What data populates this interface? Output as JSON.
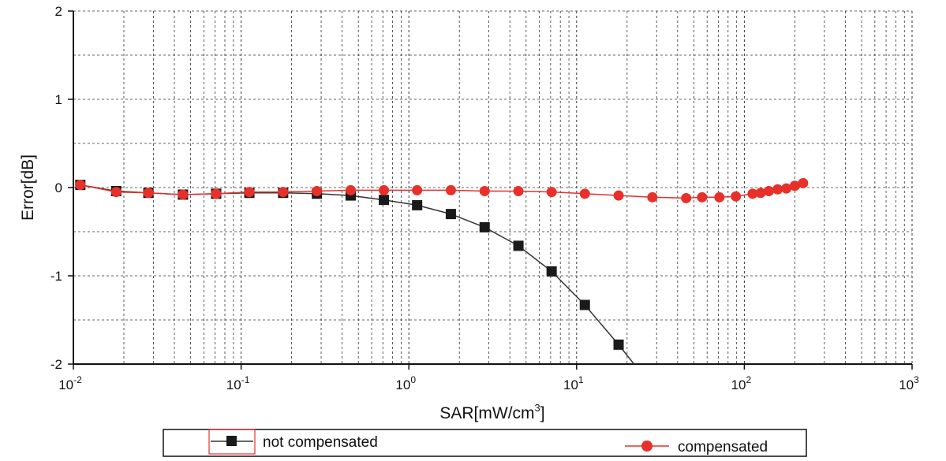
{
  "chart_data": {
    "type": "line",
    "x_scale": "log",
    "xlim": [
      0.01,
      1000
    ],
    "ylim": [
      -2,
      2
    ],
    "grid": true,
    "legend_position": "bottom",
    "x_ticks": [
      {
        "value": 0.01,
        "base": "10",
        "exp": "-2"
      },
      {
        "value": 0.1,
        "base": "10",
        "exp": "-1"
      },
      {
        "value": 1,
        "base": "10",
        "exp": "0"
      },
      {
        "value": 10,
        "base": "10",
        "exp": "1"
      },
      {
        "value": 100,
        "base": "10",
        "exp": "2"
      },
      {
        "value": 1000,
        "base": "10",
        "exp": "3"
      }
    ],
    "y_ticks": [
      {
        "value": 2,
        "label": "2"
      },
      {
        "value": 1,
        "label": "1"
      },
      {
        "value": 0,
        "label": "0"
      },
      {
        "value": -1,
        "label": "-1"
      },
      {
        "value": -2,
        "label": "-2"
      }
    ],
    "xlabel": {
      "main": "SAR[mW/cm",
      "sup": "3",
      "end": "]"
    },
    "ylabel": "Error[dB]",
    "series": [
      {
        "name": "not compensated",
        "color": "#1a1a1a",
        "line_color": "#333333",
        "marker": "square",
        "x": [
          0.011,
          0.018,
          0.028,
          0.045,
          0.071,
          0.112,
          0.178,
          0.283,
          0.45,
          0.71,
          1.12,
          1.78,
          2.83,
          4.5,
          7.1,
          11.2,
          17.8,
          22
        ],
        "y": [
          0.03,
          -0.04,
          -0.06,
          -0.08,
          -0.07,
          -0.06,
          -0.06,
          -0.07,
          -0.09,
          -0.14,
          -0.2,
          -0.3,
          -0.45,
          -0.66,
          -0.95,
          -1.33,
          -1.78,
          -2.0
        ],
        "marker_count": 17
      },
      {
        "name": "compensated",
        "color": "#e8302b",
        "line_color": "#e8302b",
        "marker": "circle",
        "x": [
          0.011,
          0.018,
          0.028,
          0.045,
          0.071,
          0.112,
          0.178,
          0.283,
          0.45,
          0.71,
          1.12,
          1.78,
          2.83,
          4.5,
          7.1,
          11.2,
          17.8,
          28.3,
          45,
          56,
          71,
          89,
          112,
          125,
          140,
          158,
          178,
          200,
          224
        ],
        "y": [
          0.03,
          -0.05,
          -0.06,
          -0.08,
          -0.07,
          -0.05,
          -0.05,
          -0.04,
          -0.03,
          -0.03,
          -0.03,
          -0.03,
          -0.04,
          -0.04,
          -0.05,
          -0.07,
          -0.09,
          -0.11,
          -0.12,
          -0.11,
          -0.11,
          -0.1,
          -0.07,
          -0.06,
          -0.04,
          -0.02,
          -0.01,
          0.02,
          0.05
        ]
      }
    ],
    "legend": [
      {
        "label": "not compensated"
      },
      {
        "label": "compensated"
      }
    ]
  }
}
